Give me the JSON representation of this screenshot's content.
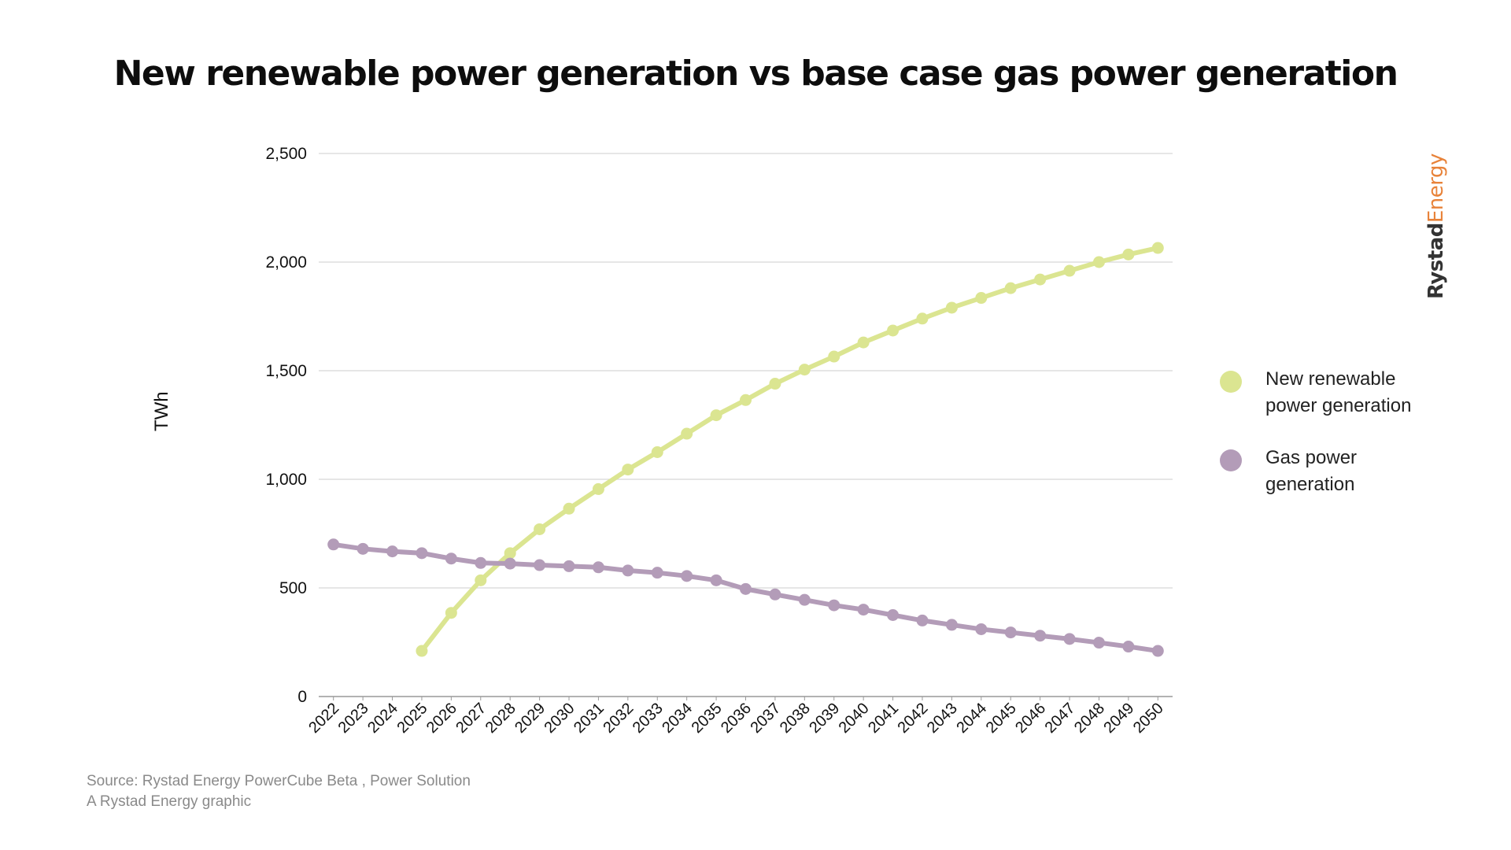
{
  "title": "New renewable power generation vs base case gas power generation",
  "brand": {
    "part1": "Rystad",
    "part2": "Energy"
  },
  "source": {
    "line1": "Source: Rystad Energy PowerCube Beta , Power Solution",
    "line2": "A Rystad Energy graphic"
  },
  "colors": {
    "renewable": "#dbe591",
    "gas": "#b39cb8",
    "grid": "#d6d6d6",
    "axis": "#999999"
  },
  "chart_data": {
    "type": "line",
    "title": "New renewable power generation vs base case gas power generation",
    "xlabel": "",
    "ylabel": "TWh",
    "ylim": [
      0,
      2500
    ],
    "yticks": [
      0,
      500,
      1000,
      1500,
      2000,
      2500
    ],
    "ytick_labels": [
      "0",
      "500",
      "1,000",
      "1,500",
      "2,000",
      "2,500"
    ],
    "grid": true,
    "legend_position": "right",
    "x": [
      2022,
      2023,
      2024,
      2025,
      2026,
      2027,
      2028,
      2029,
      2030,
      2031,
      2032,
      2033,
      2034,
      2035,
      2036,
      2037,
      2038,
      2039,
      2040,
      2041,
      2042,
      2043,
      2044,
      2045,
      2046,
      2047,
      2048,
      2049,
      2050
    ],
    "series": [
      {
        "name": "New renewable power generation",
        "color": "#dbe591",
        "values": [
          null,
          null,
          null,
          210,
          385,
          535,
          660,
          770,
          865,
          955,
          1045,
          1125,
          1210,
          1295,
          1365,
          1440,
          1505,
          1565,
          1630,
          1685,
          1740,
          1790,
          1835,
          1880,
          1920,
          1960,
          2000,
          2035,
          2065
        ]
      },
      {
        "name": "Gas power generation",
        "color": "#b39cb8",
        "values": [
          700,
          680,
          668,
          660,
          635,
          615,
          612,
          605,
          600,
          595,
          580,
          570,
          555,
          535,
          495,
          470,
          445,
          420,
          400,
          375,
          350,
          330,
          310,
          295,
          280,
          265,
          248,
          230,
          210
        ]
      }
    ]
  }
}
